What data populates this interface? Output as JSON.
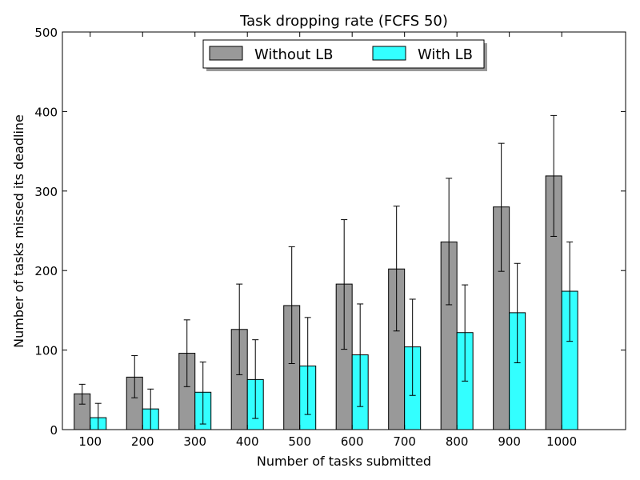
{
  "chart_data": {
    "type": "bar",
    "title": "Task dropping rate (FCFS 50)",
    "xlabel": "Number of tasks submitted",
    "ylabel": "Number of tasks missed its deadline",
    "categories": [
      "100",
      "200",
      "300",
      "400",
      "500",
      "600",
      "700",
      "800",
      "900",
      "1000"
    ],
    "ylim": [
      0,
      500
    ],
    "yticks": [
      0,
      100,
      200,
      300,
      400,
      500
    ],
    "grid": false,
    "legend_position": "top-center",
    "series": [
      {
        "name": "Without LB",
        "color": "#999999",
        "values": [
          45,
          66,
          96,
          126,
          156,
          183,
          202,
          236,
          280,
          319
        ],
        "err_low": [
          32,
          40,
          54,
          69,
          83,
          101,
          124,
          157,
          199,
          243
        ],
        "err_high": [
          57,
          93,
          138,
          183,
          230,
          264,
          281,
          316,
          360,
          395
        ]
      },
      {
        "name": "With LB",
        "color": "#33ffff",
        "values": [
          15,
          26,
          47,
          63,
          80,
          94,
          104,
          122,
          147,
          174
        ],
        "err_low": [
          0,
          0,
          7,
          14,
          19,
          29,
          43,
          61,
          84,
          111
        ],
        "err_high": [
          33,
          51,
          85,
          113,
          141,
          158,
          164,
          182,
          209,
          236
        ]
      }
    ]
  }
}
